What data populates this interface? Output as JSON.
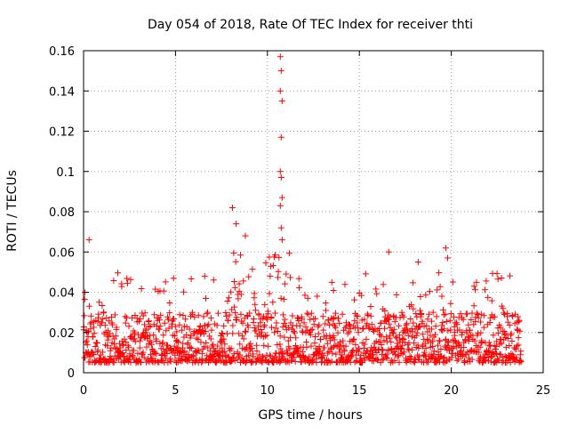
{
  "chart_data": {
    "type": "scatter",
    "title": "Day 054 of 2018, Rate Of TEC Index for receiver thti",
    "xlabel": "GPS time / hours",
    "ylabel": "ROTI / TECUs",
    "xlim": [
      0,
      25
    ],
    "ylim": [
      0,
      0.16
    ],
    "x_ticks": [
      0,
      5,
      10,
      15,
      20,
      25
    ],
    "x_tick_labels": [
      "0",
      "5",
      "10",
      "15",
      "20",
      "25"
    ],
    "y_ticks": [
      0,
      0.02,
      0.04,
      0.06,
      0.08,
      0.1,
      0.12,
      0.14,
      0.16
    ],
    "y_tick_labels": [
      "0",
      "0.02",
      "0.04",
      "0.06",
      "0.08",
      "0.1",
      "0.12",
      "0.14",
      "0.16"
    ],
    "grid": true,
    "marker": "+",
    "color": "#ff0000",
    "data_x_range": [
      0,
      23.8
    ],
    "baseline_band": [
      0.005,
      0.03
    ],
    "peaks": [
      {
        "x": 0.3,
        "y": 0.066
      },
      {
        "x": 8.1,
        "y": 0.082
      },
      {
        "x": 8.3,
        "y": 0.074
      },
      {
        "x": 8.8,
        "y": 0.068
      },
      {
        "x": 10.7,
        "y": 0.157
      },
      {
        "x": 10.75,
        "y": 0.15
      },
      {
        "x": 10.7,
        "y": 0.14
      },
      {
        "x": 10.8,
        "y": 0.135
      },
      {
        "x": 10.75,
        "y": 0.117
      },
      {
        "x": 10.7,
        "y": 0.1
      },
      {
        "x": 10.75,
        "y": 0.097
      },
      {
        "x": 10.8,
        "y": 0.087
      },
      {
        "x": 10.7,
        "y": 0.083
      },
      {
        "x": 10.75,
        "y": 0.072
      },
      {
        "x": 10.8,
        "y": 0.066
      },
      {
        "x": 16.6,
        "y": 0.06
      },
      {
        "x": 18.2,
        "y": 0.055
      },
      {
        "x": 19.7,
        "y": 0.062
      },
      {
        "x": 19.8,
        "y": 0.057
      }
    ]
  }
}
